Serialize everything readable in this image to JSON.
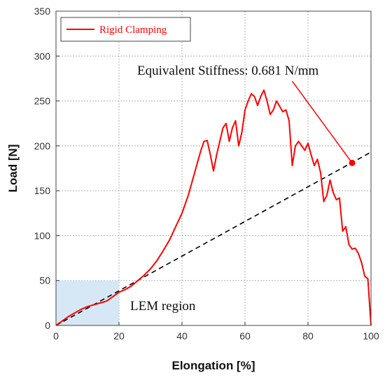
{
  "chart_data": {
    "type": "line",
    "xlabel": "Elongation [%]",
    "ylabel": "Load [N]",
    "xlim": [
      0,
      100
    ],
    "ylim": [
      0,
      350
    ],
    "x_ticks": [
      0,
      20,
      40,
      60,
      80,
      100
    ],
    "y_ticks": [
      0,
      50,
      100,
      150,
      200,
      250,
      300,
      350
    ],
    "grid": true,
    "legend": {
      "position": "top-left",
      "entries": [
        "Rigid Clamping"
      ]
    },
    "colors": {
      "series": "#ff0000",
      "reference_line": "#000000",
      "region": "#d6e8f6"
    },
    "series": [
      {
        "name": "Rigid Clamping",
        "x": [
          0,
          2,
          4,
          6,
          8,
          10,
          12,
          14,
          16,
          18,
          20,
          22,
          24,
          26,
          28,
          30,
          32,
          34,
          36,
          38,
          40,
          42,
          44,
          46,
          47,
          48,
          49,
          50,
          51,
          52,
          53,
          54,
          55,
          56,
          57,
          58,
          59,
          60,
          61,
          62,
          63,
          64,
          65,
          66,
          67,
          68,
          69,
          70,
          71,
          72,
          73,
          74,
          75,
          76,
          77,
          78,
          79,
          80,
          81,
          82,
          83,
          84,
          85,
          86,
          87,
          88,
          89,
          90,
          91,
          92,
          93,
          94,
          95,
          96,
          97,
          98,
          99,
          100
        ],
        "y": [
          0,
          5,
          10,
          14,
          18,
          21,
          23,
          25,
          27,
          32,
          37,
          40,
          44,
          50,
          56,
          63,
          72,
          83,
          95,
          110,
          125,
          145,
          170,
          195,
          205,
          206,
          190,
          172,
          190,
          205,
          220,
          225,
          205,
          220,
          228,
          200,
          215,
          240,
          250,
          258,
          255,
          245,
          255,
          262,
          250,
          235,
          240,
          250,
          244,
          238,
          240,
          228,
          178,
          200,
          205,
          200,
          195,
          203,
          190,
          178,
          185,
          170,
          138,
          145,
          162,
          148,
          140,
          142,
          105,
          110,
          90,
          85,
          86,
          80,
          70,
          55,
          52,
          0
        ]
      }
    ],
    "reference_line": {
      "style": "dashed",
      "x": [
        0,
        100
      ],
      "y": [
        0,
        193
      ]
    },
    "marker": {
      "x": 94,
      "y": 181
    },
    "annotations": {
      "stiffness_label": "Equivalent Stiffness: 0.681 N/mm",
      "arrow_from": {
        "x": 75,
        "y": 272
      },
      "region_label": "LEM region"
    },
    "region": {
      "x": [
        0,
        20
      ],
      "y": [
        0,
        50
      ]
    }
  }
}
